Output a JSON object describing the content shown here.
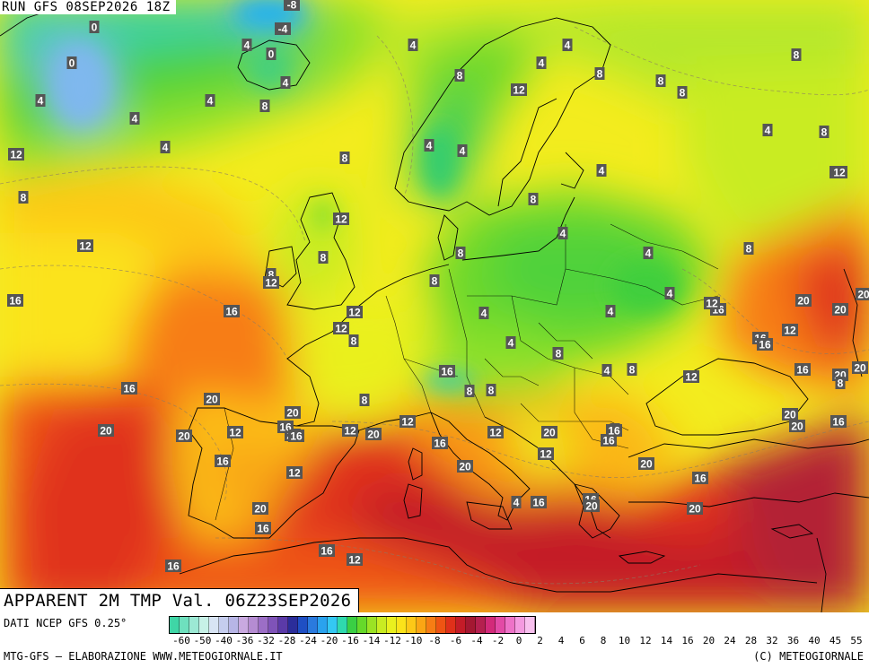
{
  "map": {
    "run_label": "RUN GFS 08SEP2026 18Z",
    "title": "APPARENT 2M TMP Val. 06Z23SEP2026",
    "data_source": "DATI NCEP GFS 0.25°",
    "credit": "MTG-GFS — ELABORAZIONE WWW.METEOGIORNALE.IT",
    "copyright": "(C) METEOGIORNALE",
    "scale_ticks": [
      "-60",
      "-50",
      "-40",
      "-36",
      "-32",
      "-28",
      "-24",
      "-20",
      "-16",
      "-14",
      "-12",
      "-10",
      "-8",
      "-6",
      "-4",
      "-2",
      "0",
      "2",
      "4",
      "6",
      "8",
      "10",
      "12",
      "14",
      "16",
      "20",
      "24",
      "28",
      "32",
      "36",
      "40",
      "45",
      "55"
    ],
    "scale_colors": [
      "#3fd6a6",
      "#6ee0be",
      "#9ce9d4",
      "#c7f1e7",
      "#d8e4f4",
      "#c5cdee",
      "#b7b5e6",
      "#c9a9e0",
      "#b58cd2",
      "#9c6ec6",
      "#7f53b8",
      "#5b3aa8",
      "#2b2d9a",
      "#1f4fc4",
      "#2a7ade",
      "#2aa2ee",
      "#34c8f3",
      "#2fd9ae",
      "#3acf44",
      "#66d92a",
      "#9be324",
      "#c9ec22",
      "#eaf01e",
      "#fbe31a",
      "#fdc817",
      "#fba614",
      "#f77d14",
      "#ef5413",
      "#e0301a",
      "#c41c28",
      "#a41832",
      "#b5204f",
      "#d32a7a",
      "#e34aa6",
      "#ee72c8",
      "#f49ae0",
      "#f8c0ee"
    ],
    "values": [
      {
        "t": "0"
      },
      {
        "t": "-8"
      },
      {
        "t": "-4"
      },
      {
        "t": "0"
      },
      {
        "t": "4"
      },
      {
        "t": "0"
      },
      {
        "t": "4"
      },
      {
        "t": "4"
      },
      {
        "t": "4"
      },
      {
        "t": "4"
      },
      {
        "t": "4"
      },
      {
        "t": "8"
      },
      {
        "t": "4"
      },
      {
        "t": "4"
      },
      {
        "t": "8"
      },
      {
        "t": "12"
      },
      {
        "t": "8"
      },
      {
        "t": "8"
      },
      {
        "t": "8"
      },
      {
        "t": "8"
      },
      {
        "t": "4"
      },
      {
        "t": "8"
      },
      {
        "t": "4"
      },
      {
        "t": "8"
      },
      {
        "t": "4"
      },
      {
        "t": "4"
      },
      {
        "t": "4"
      },
      {
        "t": "8"
      },
      {
        "t": "8"
      },
      {
        "t": "8"
      },
      {
        "t": "8"
      },
      {
        "t": "8"
      },
      {
        "t": "8"
      },
      {
        "t": "8"
      },
      {
        "t": "12"
      },
      {
        "t": "12"
      },
      {
        "t": "12"
      },
      {
        "t": "12"
      },
      {
        "t": "12"
      },
      {
        "t": "12"
      },
      {
        "t": "16"
      },
      {
        "t": "16"
      },
      {
        "t": "16"
      },
      {
        "t": "16"
      },
      {
        "t": "20"
      },
      {
        "t": "20"
      },
      {
        "t": "20"
      },
      {
        "t": "20"
      },
      {
        "t": "20"
      },
      {
        "t": "12"
      },
      {
        "t": "16"
      },
      {
        "t": "16"
      },
      {
        "t": "16"
      },
      {
        "t": "12"
      },
      {
        "t": "12"
      },
      {
        "t": "20"
      },
      {
        "t": "20"
      },
      {
        "t": "12"
      },
      {
        "t": "12"
      },
      {
        "t": "16"
      },
      {
        "t": "8"
      },
      {
        "t": "8"
      },
      {
        "t": "4"
      },
      {
        "t": "4"
      },
      {
        "t": "4"
      },
      {
        "t": "4"
      },
      {
        "t": "8"
      },
      {
        "t": "4"
      },
      {
        "t": "4"
      },
      {
        "t": "8"
      },
      {
        "t": "8"
      },
      {
        "t": "8"
      },
      {
        "t": "4"
      },
      {
        "t": "12"
      },
      {
        "t": "16"
      },
      {
        "t": "16"
      },
      {
        "t": "20"
      },
      {
        "t": "12"
      },
      {
        "t": "16"
      },
      {
        "t": "20"
      },
      {
        "t": "20"
      },
      {
        "t": "16"
      },
      {
        "t": "16"
      },
      {
        "t": "20"
      },
      {
        "t": "16"
      },
      {
        "t": "20"
      },
      {
        "t": "16"
      },
      {
        "t": "12"
      },
      {
        "t": "8"
      },
      {
        "t": "16"
      },
      {
        "t": "16"
      },
      {
        "t": "20"
      },
      {
        "t": "20"
      },
      {
        "t": "20"
      },
      {
        "t": "20"
      },
      {
        "t": "16"
      },
      {
        "t": "20"
      },
      {
        "t": "20"
      },
      {
        "t": "12"
      },
      {
        "t": "16"
      },
      {
        "t": "12"
      },
      {
        "t": "20"
      },
      {
        "t": "16"
      },
      {
        "t": "8"
      },
      {
        "t": "20"
      },
      {
        "t": "8"
      },
      {
        "t": "4"
      },
      {
        "t": "16"
      },
      {
        "t": "12"
      }
    ]
  }
}
